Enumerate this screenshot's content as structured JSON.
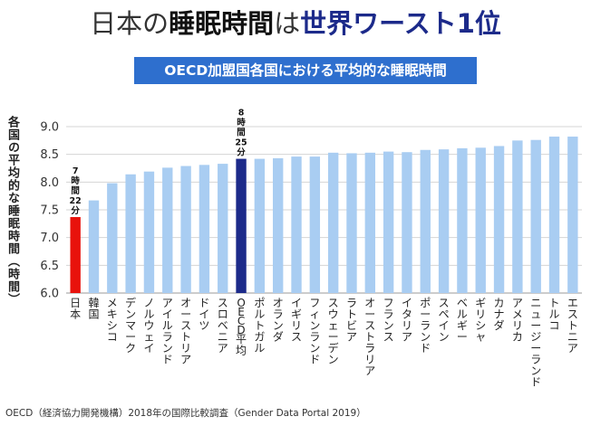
{
  "title": {
    "part1": "日本の",
    "part2": "睡眠時間",
    "part3": "は",
    "part4": "世界ワースト1位"
  },
  "subtitle": "OECD加盟国各国における平均的な睡眠時間",
  "source": "OECD（経済協力開発機構）2018年の国際比較調査（Gender Data Portal 2019）",
  "colors": {
    "japan": "#e8120c",
    "oecd": "#1c2a8a",
    "default": "#a9cdf2",
    "banner": "#2e6fce"
  },
  "chart_data": {
    "type": "bar",
    "ylabel": "各国の平均的な睡眠時間（時間）",
    "ylim": [
      6.0,
      9.0
    ],
    "yticks": [
      "6.0",
      "6.5",
      "7.0",
      "7.5",
      "8.0",
      "8.5",
      "9.0"
    ],
    "grid": true,
    "categories": [
      "日本",
      "韓国",
      "メキシコ",
      "デンマーク",
      "ノルウェイ",
      "アイルランド",
      "オーストリア",
      "ドイツ",
      "スロベニア",
      "OECD平均",
      "ポルトガル",
      "オランダ",
      "イギリス",
      "フィンランド",
      "スウェーデン",
      "ラトビア",
      "オーストラリア",
      "フランス",
      "イタリア",
      "ポーランド",
      "スペイン",
      "ベルギー",
      "ギリシャ",
      "カナダ",
      "アメリカ",
      "ニュージーランド",
      "トルコ",
      "エストニア"
    ],
    "values": [
      7.37,
      7.67,
      7.98,
      8.14,
      8.19,
      8.26,
      8.29,
      8.31,
      8.33,
      8.42,
      8.42,
      8.43,
      8.46,
      8.46,
      8.53,
      8.52,
      8.53,
      8.55,
      8.54,
      8.58,
      8.59,
      8.61,
      8.62,
      8.65,
      8.75,
      8.76,
      8.82,
      8.82
    ],
    "annotations": [
      {
        "category": "日本",
        "lines": [
          "7",
          "時",
          "間",
          "22",
          "分"
        ]
      },
      {
        "category": "OECD平均",
        "lines": [
          "8",
          "時",
          "間",
          "25",
          "分"
        ]
      }
    ]
  }
}
